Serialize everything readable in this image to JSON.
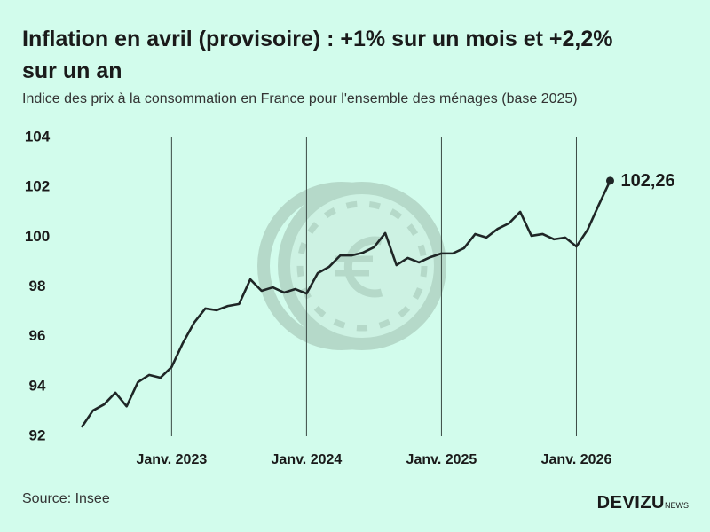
{
  "chart_data": {
    "type": "line",
    "title": "Inflation en avril (provisoire) : +1% sur un mois et +2,2% sur un an",
    "subtitle": "Indice des prix à la consommation en France pour l'ensemble des ménages (base 2025)",
    "source": "Source: Insee",
    "categories": [
      null,
      null,
      null,
      null,
      null,
      null,
      null,
      null,
      "Janv. 2023",
      null,
      null,
      null,
      null,
      null,
      null,
      null,
      null,
      null,
      null,
      null,
      "Janv. 2024",
      null,
      null,
      null,
      null,
      null,
      null,
      null,
      null,
      null,
      null,
      null,
      "Janv. 2025",
      null,
      null,
      null,
      null,
      null,
      null,
      null,
      null,
      null,
      null,
      null,
      "Janv. 2026",
      null,
      null,
      null
    ],
    "values": [
      92.36,
      93.03,
      93.28,
      93.75,
      93.2,
      94.17,
      94.46,
      94.35,
      94.78,
      95.74,
      96.56,
      97.13,
      97.06,
      97.23,
      97.31,
      98.3,
      97.84,
      97.98,
      97.77,
      97.91,
      97.73,
      98.55,
      98.8,
      99.26,
      99.26,
      99.37,
      99.59,
      100.16,
      98.87,
      99.16,
      98.98,
      99.19,
      99.34,
      99.34,
      99.55,
      100.12,
      99.98,
      100.33,
      100.55,
      101.01,
      100.05,
      100.12,
      99.91,
      99.98,
      99.62,
      100.3,
      101.3,
      102.26
    ],
    "value_labels": [
      null,
      null,
      null,
      null,
      null,
      null,
      null,
      null,
      null,
      null,
      null,
      null,
      null,
      null,
      null,
      null,
      null,
      null,
      null,
      null,
      null,
      null,
      null,
      null,
      null,
      null,
      null,
      null,
      null,
      null,
      null,
      null,
      null,
      null,
      null,
      null,
      null,
      null,
      null,
      null,
      null,
      null,
      null,
      null,
      null,
      null,
      null,
      "102,26"
    ],
    "color": "#1f2626",
    "ylim": [
      92,
      104
    ],
    "yticks": [
      92,
      94,
      96,
      98,
      100,
      102,
      104
    ]
  },
  "brand": {
    "name": "DEVIZU",
    "suffix": "NEWS"
  }
}
